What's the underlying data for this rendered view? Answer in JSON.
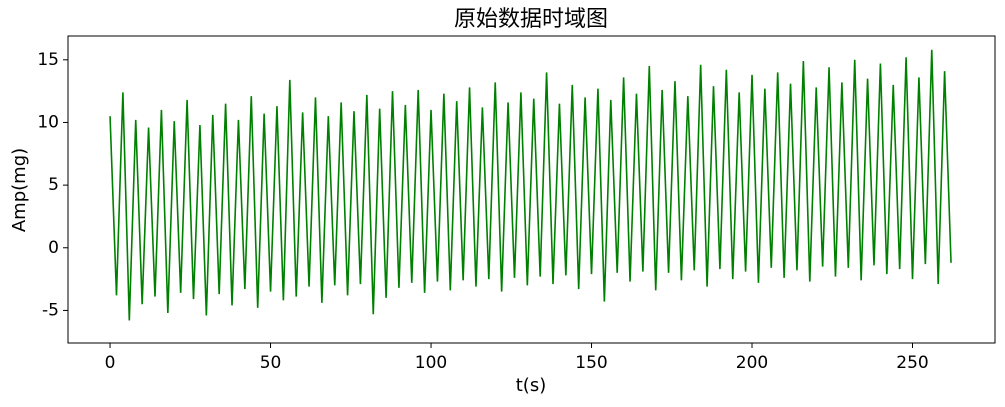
{
  "chart_data": {
    "type": "line",
    "title": "原始数据时域图",
    "xlabel": "t(s)",
    "ylabel": "Amp(mg)",
    "x": [
      0,
      2,
      4,
      6,
      8,
      10,
      12,
      14,
      16,
      18,
      20,
      22,
      24,
      26,
      28,
      30,
      32,
      34,
      36,
      38,
      40,
      42,
      44,
      46,
      48,
      50,
      52,
      54,
      56,
      58,
      60,
      62,
      64,
      66,
      68,
      70,
      72,
      74,
      76,
      78,
      80,
      82,
      84,
      86,
      88,
      90,
      92,
      94,
      96,
      98,
      100,
      102,
      104,
      106,
      108,
      110,
      112,
      114,
      116,
      118,
      120,
      122,
      124,
      126,
      128,
      130,
      132,
      134,
      136,
      138,
      140,
      142,
      144,
      146,
      148,
      150,
      152,
      154,
      156,
      158,
      160,
      162,
      164,
      166,
      168,
      170,
      172,
      174,
      176,
      178,
      180,
      182,
      184,
      186,
      188,
      190,
      192,
      194,
      196,
      198,
      200,
      202,
      204,
      206,
      208,
      210,
      212,
      214,
      216,
      218,
      220,
      222,
      224,
      226,
      228,
      230,
      232,
      234,
      236,
      238,
      240,
      242,
      244,
      246,
      248,
      250,
      252,
      254,
      256,
      258,
      260,
      262
    ],
    "series": [
      {
        "color": "#008000",
        "values": [
          10.5,
          -3.8,
          12.4,
          -5.8,
          10.2,
          -4.5,
          9.6,
          -3.9,
          11.0,
          -5.2,
          10.1,
          -3.6,
          11.8,
          -4.1,
          9.8,
          -5.4,
          10.6,
          -3.7,
          11.5,
          -4.6,
          10.2,
          -3.3,
          12.1,
          -4.8,
          10.7,
          -3.5,
          11.3,
          -4.2,
          13.4,
          -3.9,
          10.8,
          -3.1,
          12.0,
          -4.4,
          10.5,
          -3.0,
          11.6,
          -3.8,
          10.9,
          -2.9,
          12.2,
          -5.3,
          11.1,
          -4.0,
          12.5,
          -3.2,
          11.4,
          -2.8,
          12.6,
          -3.6,
          11.0,
          -2.7,
          12.3,
          -3.4,
          11.7,
          -2.6,
          12.8,
          -3.1,
          11.2,
          -2.5,
          13.2,
          -3.5,
          11.6,
          -2.4,
          12.4,
          -3.0,
          11.9,
          -2.3,
          14.0,
          -2.9,
          11.5,
          -2.2,
          13.0,
          -3.3,
          12.0,
          -2.1,
          12.7,
          -4.3,
          11.8,
          -2.0,
          13.6,
          -2.7,
          12.3,
          -1.9,
          14.5,
          -3.4,
          12.6,
          -2.0,
          13.3,
          -2.6,
          12.1,
          -1.8,
          14.6,
          -3.1,
          12.9,
          -1.7,
          14.2,
          -2.5,
          12.4,
          -1.9,
          13.8,
          -2.8,
          12.7,
          -1.6,
          14.0,
          -2.4,
          13.1,
          -1.8,
          14.9,
          -2.7,
          12.8,
          -1.5,
          14.4,
          -2.3,
          13.2,
          -1.6,
          15.0,
          -2.6,
          13.5,
          -1.4,
          14.7,
          -2.1,
          13.0,
          -1.7,
          15.2,
          -2.5,
          13.6,
          -1.3,
          15.8,
          -2.9,
          14.1,
          -1.2
        ]
      }
    ],
    "xlim": [
      -13.1,
      275.7
    ],
    "ylim": [
      -7.6,
      16.9
    ],
    "xticks": [
      0,
      50,
      100,
      150,
      200,
      250
    ],
    "yticks": [
      -5,
      0,
      5,
      10,
      15
    ],
    "grid": false
  }
}
